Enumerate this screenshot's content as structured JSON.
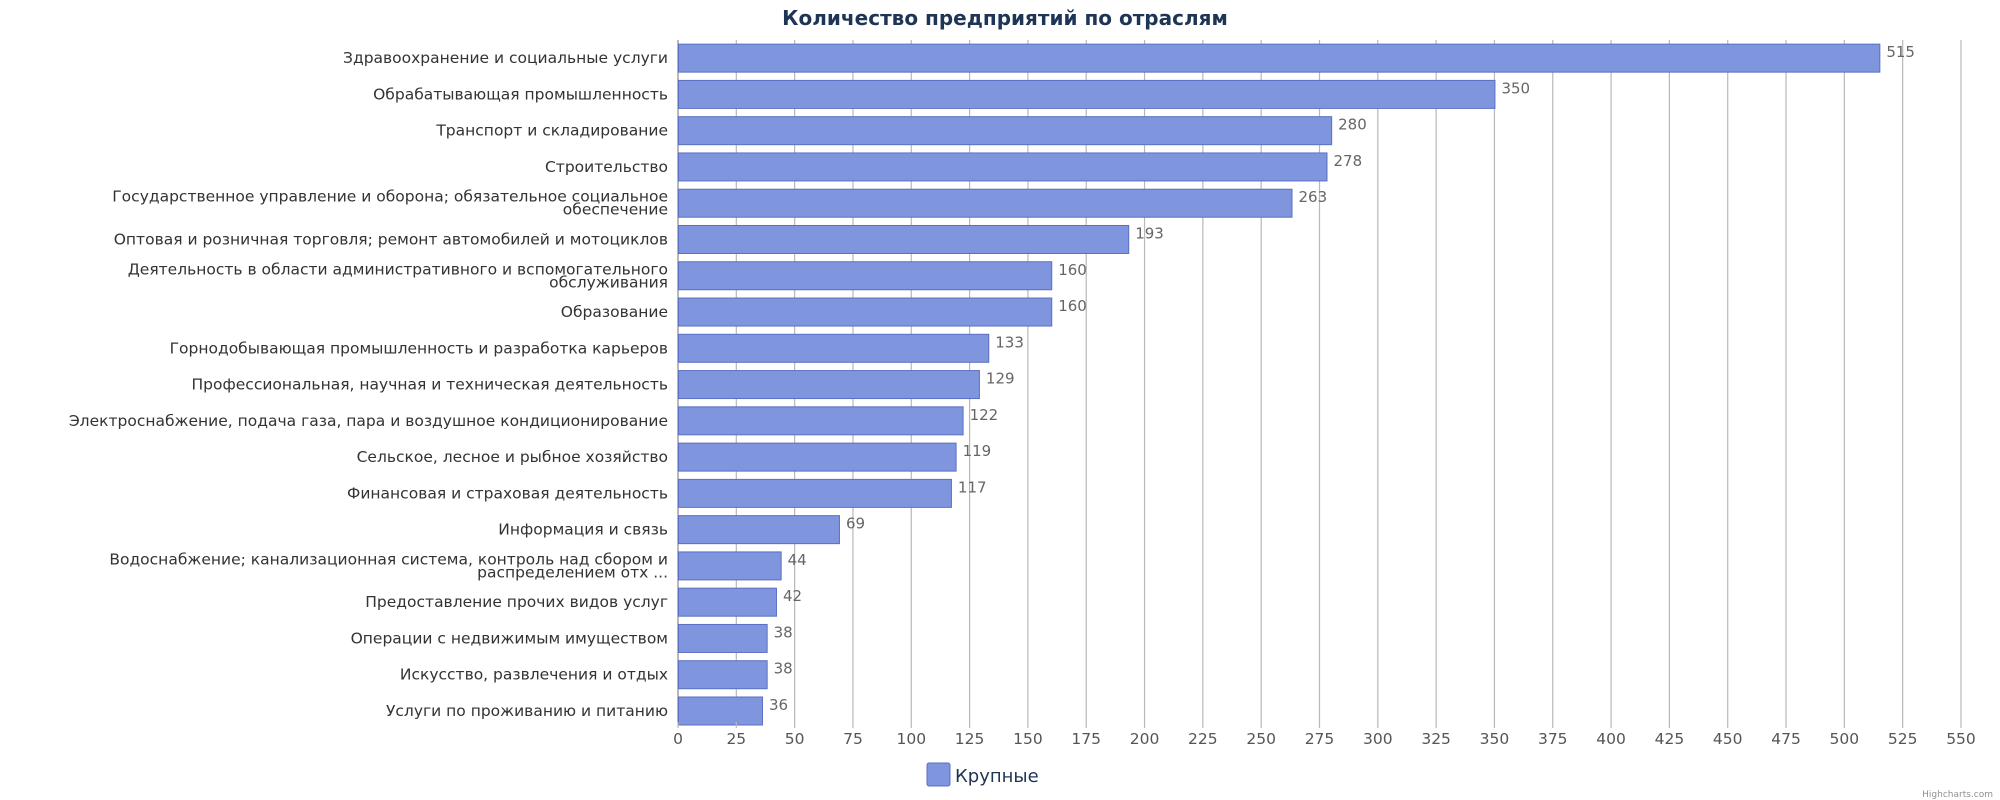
{
  "chart_data": {
    "type": "bar",
    "orientation": "horizontal",
    "title": "Количество предприятий по отраслям",
    "xlabel": "",
    "ylabel": "",
    "categories": [
      "Здравоохранение и социальные услуги",
      "Обрабатывающая промышленность",
      "Транспорт и складирование",
      "Строительство",
      "Государственное управление и оборона; обязательное социальное обеспечение",
      "Оптовая и розничная торговля; ремонт автомобилей и мотоциклов",
      "Деятельность в области административного и вспомогательного обслуживания",
      "Образование",
      "Горнодобывающая промышленность и разработка карьеров",
      "Профессиональная, научная и техническая деятельность",
      "Электроснабжение, подача газа, пара и воздушное кондиционирование",
      "Сельское, лесное и рыбное хозяйство",
      "Финансовая и страховая деятельность",
      "Информация и связь",
      "Водоснабжение; канализационная система, контроль над сбором и распределением отх ...",
      "Предоставление прочих видов услуг",
      "Операции с недвижимым имуществом",
      "Искусство, развлечения и отдых",
      "Услуги по проживанию и питанию"
    ],
    "series": [
      {
        "name": "Крупные",
        "color": "#7f95de",
        "border_color": "#5a6fc4",
        "values": [
          515,
          350,
          280,
          278,
          263,
          193,
          160,
          160,
          133,
          129,
          122,
          119,
          117,
          69,
          44,
          42,
          38,
          38,
          36
        ]
      }
    ],
    "xlim": [
      0,
      550
    ],
    "x_tick_step": 25,
    "grid": true,
    "data_labels": true,
    "legend": "bottom-center"
  },
  "credits": "Highcharts.com",
  "colors": {
    "title": "#1f3556",
    "gridline": "#b8b8b8",
    "bar_fill": "#7f95de",
    "bar_border": "#5a6fc4"
  }
}
